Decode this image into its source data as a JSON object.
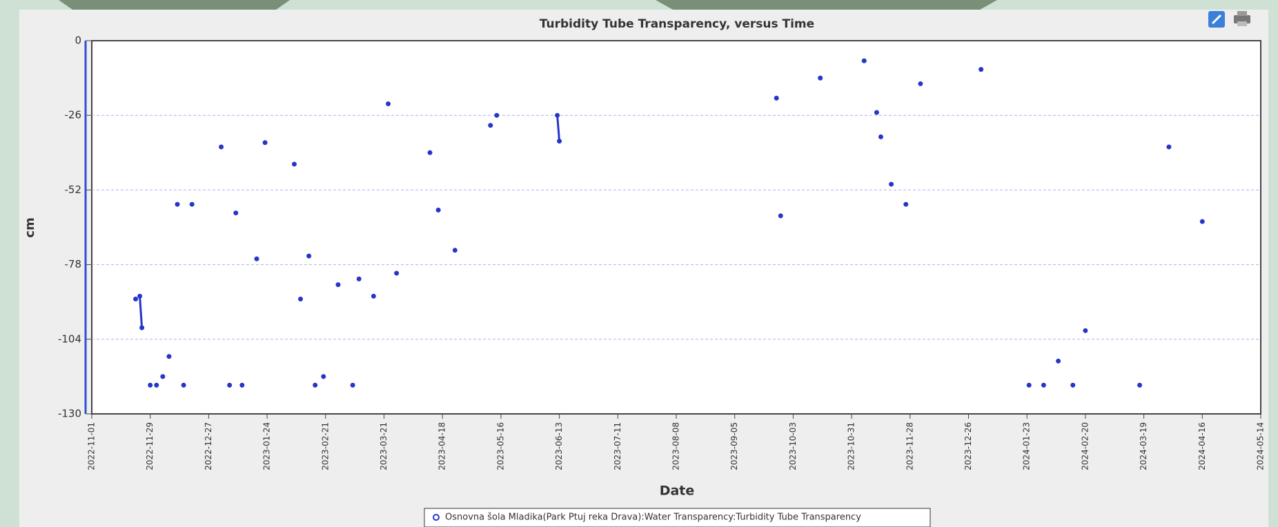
{
  "chart_data": {
    "type": "scatter",
    "title": "Turbidity Tube Transparency, versus Time",
    "x_label": "Date",
    "y_label": "cm",
    "xlim": [
      "2022-11-01",
      "2024-05-14"
    ],
    "xticks": [
      "2022-11-01",
      "2022-11-29",
      "2022-12-27",
      "2023-01-24",
      "2023-02-21",
      "2023-03-21",
      "2023-04-18",
      "2023-05-16",
      "2023-06-13",
      "2023-07-11",
      "2023-08-08",
      "2023-09-05",
      "2023-10-03",
      "2023-10-31",
      "2023-11-28",
      "2023-12-26",
      "2024-01-23",
      "2024-02-20",
      "2024-03-19",
      "2024-04-16",
      "2024-05-14"
    ],
    "ylim": [
      -130,
      0
    ],
    "yticks": [
      0,
      -26,
      -52,
      -78,
      -104,
      -130
    ],
    "grid": true,
    "legend": "bottom",
    "series": [
      {
        "name": "Osnovna šola Mladika(Park Ptuj reka Drava):Water Transparency:Turbidity Tube Transparency",
        "color": "#2536c8",
        "x": [
          "2022-11-22",
          "2022-11-24",
          "2022-11-25",
          "2022-11-29",
          "2022-12-02",
          "2022-12-05",
          "2022-12-08",
          "2022-12-12",
          "2022-12-15",
          "2022-12-19",
          "2023-01-02",
          "2023-01-06",
          "2023-01-09",
          "2023-01-12",
          "2023-01-19",
          "2023-01-23",
          "2023-02-06",
          "2023-02-09",
          "2023-02-13",
          "2023-02-16",
          "2023-02-20",
          "2023-02-27",
          "2023-03-06",
          "2023-03-09",
          "2023-03-16",
          "2023-03-23",
          "2023-03-27",
          "2023-04-12",
          "2023-04-16",
          "2023-04-24",
          "2023-05-11",
          "2023-05-14",
          "2023-06-12",
          "2023-06-13",
          "2023-09-25",
          "2023-09-27",
          "2023-10-16",
          "2023-11-06",
          "2023-11-12",
          "2023-11-14",
          "2023-11-19",
          "2023-11-26",
          "2023-12-03",
          "2024-01-01",
          "2024-01-24",
          "2024-01-31",
          "2024-02-07",
          "2024-02-14",
          "2024-02-20",
          "2024-03-17",
          "2024-03-31",
          "2024-04-16"
        ],
        "values": [
          -90,
          -89,
          -100,
          -120,
          -120,
          -117,
          -110,
          -57,
          -120,
          -57,
          -37,
          -120,
          -60,
          -120,
          -76,
          -35.5,
          -43,
          -90,
          -75,
          -120,
          -117,
          -85,
          -120,
          -83,
          -89,
          -22,
          -81,
          -39,
          -59,
          -73,
          -29.5,
          -26,
          -26,
          -35,
          -20,
          -61,
          -13,
          -7,
          -25,
          -33.5,
          -50,
          -57,
          -15,
          -10,
          -120,
          -120,
          -111.6,
          -120,
          -101,
          -120,
          -37,
          -63
        ]
      }
    ]
  }
}
